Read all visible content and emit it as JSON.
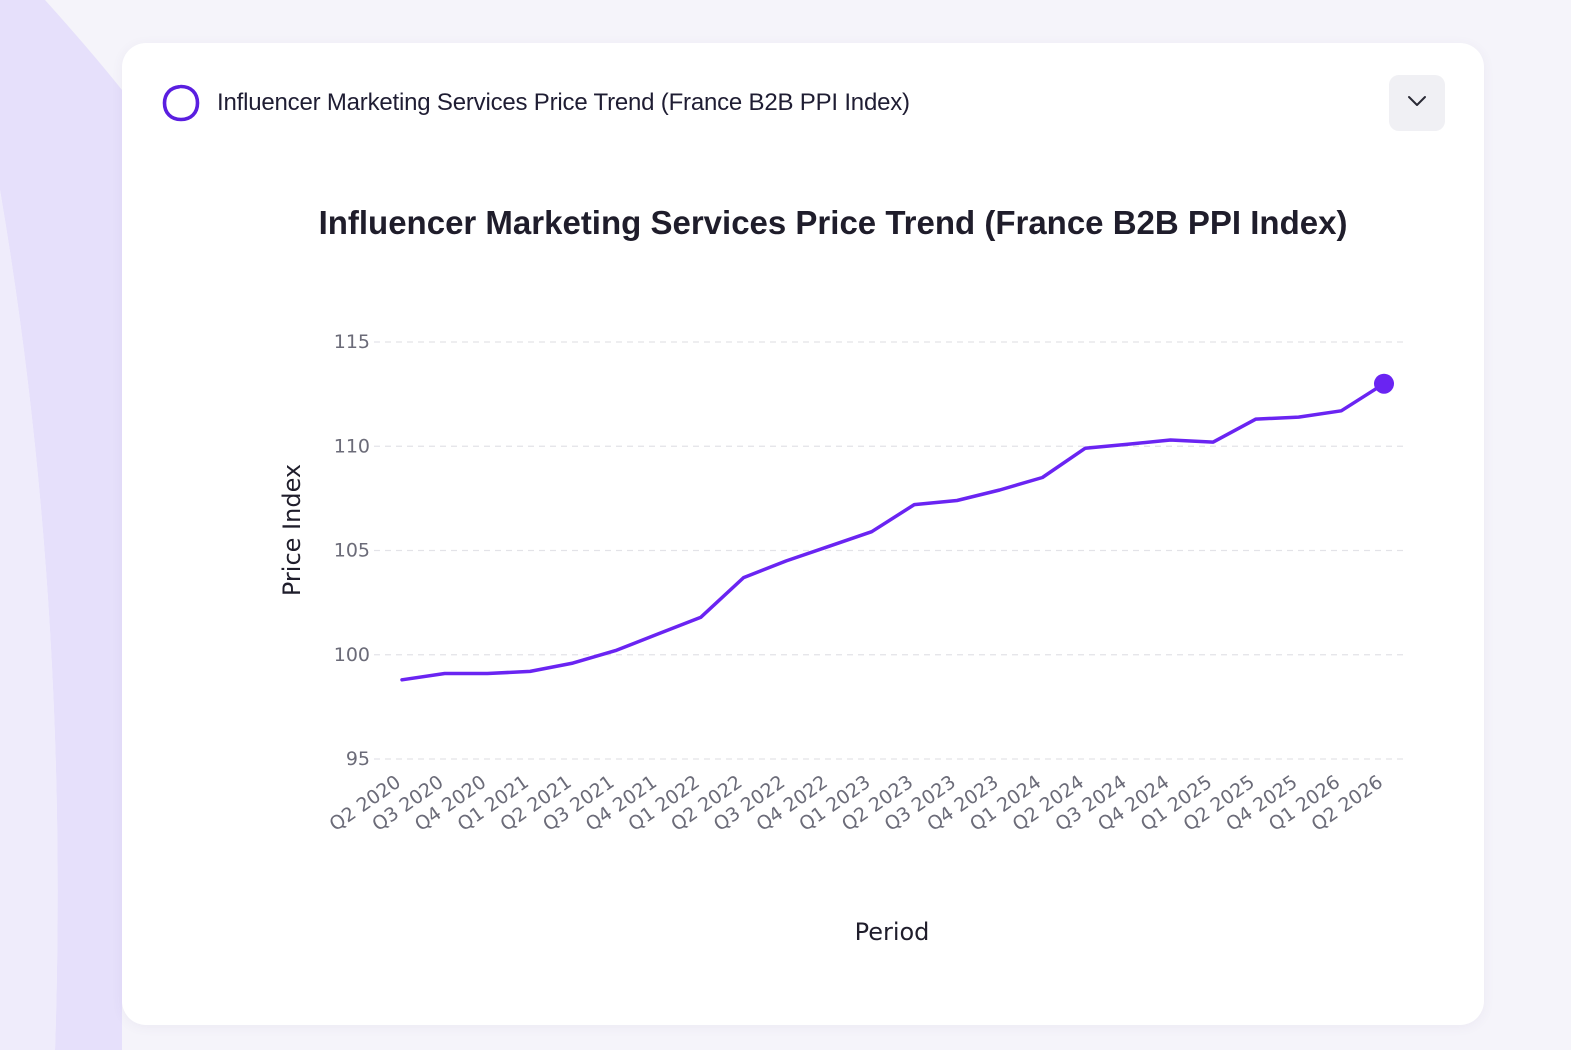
{
  "header": {
    "title": "Influencer Marketing Services Price Trend (France B2B PPI Index)",
    "icon": "ring-icon",
    "collapse_icon": "chevron-down-icon"
  },
  "colors": {
    "accent": "#6a24f2",
    "grid": "#e3e3e8",
    "background": "#f5f4fa"
  },
  "chart_data": {
    "type": "line",
    "title": "Influencer Marketing Services Price Trend (France B2B PPI Index)",
    "xlabel": "Period",
    "ylabel": "Price Index",
    "ylim": [
      95,
      115
    ],
    "yticks": [
      95,
      100,
      105,
      110,
      115
    ],
    "grid": true,
    "grid_style": "dashed",
    "categories": [
      "Q2 2020",
      "Q3 2020",
      "Q4 2020",
      "Q1 2021",
      "Q2 2021",
      "Q3 2021",
      "Q4 2021",
      "Q1 2022",
      "Q2 2022",
      "Q3 2022",
      "Q4 2022",
      "Q1 2023",
      "Q2 2023",
      "Q3 2023",
      "Q4 2023",
      "Q1 2024",
      "Q2 2024",
      "Q3 2024",
      "Q4 2024",
      "Q1 2025",
      "Q2 2025",
      "Q4 2025",
      "Q1 2026",
      "Q2 2026"
    ],
    "series": [
      {
        "values": [
          98.8,
          99.1,
          99.1,
          99.2,
          99.6,
          100.2,
          101.0,
          101.8,
          103.7,
          104.5,
          105.2,
          105.9,
          107.2,
          107.4,
          107.9,
          108.5,
          109.9,
          110.1,
          110.3,
          110.2,
          111.3,
          111.4,
          111.7,
          113.0
        ],
        "highlight_last": true
      }
    ]
  }
}
